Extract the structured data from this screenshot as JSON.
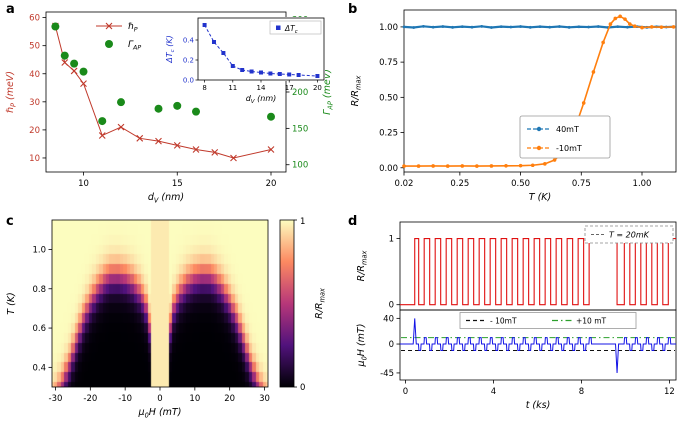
{
  "figure": {
    "background": "#ffffff"
  },
  "panels": {
    "a": {
      "label": "a"
    },
    "b": {
      "label": "b"
    },
    "c": {
      "label": "c"
    },
    "d": {
      "label": "d"
    }
  },
  "chart_data": [
    {
      "panel": "a",
      "type": "line+scatter",
      "xlabel": "d_{V} (nm)",
      "xlim": [
        8,
        20.8
      ],
      "xticks": [
        10,
        15,
        20
      ],
      "left": {
        "label": "ℏ_{P} (meV)",
        "color": "#c0392b",
        "lim": [
          5,
          62
        ],
        "ticks": [
          10,
          20,
          30,
          40,
          50,
          60
        ]
      },
      "right": {
        "label": "Γ_{AP} (meV)",
        "color": "#1a8a1a",
        "lim": [
          90,
          310
        ],
        "ticks": [
          100,
          150,
          200,
          250,
          300
        ]
      },
      "series": [
        {
          "name": "ℏ_{P}",
          "axis": "left",
          "color": "#c0392b",
          "marker": "x",
          "line": true,
          "points": [
            [
              8.5,
              57
            ],
            [
              9,
              44
            ],
            [
              9.5,
              41
            ],
            [
              10,
              36.5
            ],
            [
              11,
              18
            ],
            [
              12,
              21
            ],
            [
              13,
              17
            ],
            [
              14,
              16
            ],
            [
              15,
              14.5
            ],
            [
              16,
              13
            ],
            [
              17,
              12
            ],
            [
              18,
              10
            ],
            [
              20,
              13
            ]
          ]
        },
        {
          "name": "Γ_{AP}",
          "axis": "right",
          "color": "#1a8a1a",
          "marker": "circle",
          "line": false,
          "points": [
            [
              8.5,
              290
            ],
            [
              9,
              250
            ],
            [
              9.5,
              239
            ],
            [
              10,
              228
            ],
            [
              11,
              160
            ],
            [
              12,
              186
            ],
            [
              14,
              177
            ],
            [
              15,
              181
            ],
            [
              16,
              173
            ],
            [
              20,
              166
            ]
          ]
        }
      ],
      "inset": {
        "xlabel": "d_{V} (nm)",
        "ylabel": "ΔT_{c} (K)",
        "xlim": [
          7.3,
          20.7
        ],
        "ylim": [
          0,
          0.62
        ],
        "xticks": [
          8,
          11,
          14,
          17,
          20
        ],
        "yticks": [
          "0.0",
          "0.2",
          "0.4"
        ],
        "color": "#2233cc",
        "legend": "ΔT_{c}",
        "points": [
          [
            8,
            0.55
          ],
          [
            9,
            0.38
          ],
          [
            10,
            0.27
          ],
          [
            11,
            0.14
          ],
          [
            12,
            0.1
          ],
          [
            13,
            0.085
          ],
          [
            14,
            0.075
          ],
          [
            15,
            0.065
          ],
          [
            16,
            0.06
          ],
          [
            17,
            0.055
          ],
          [
            18,
            0.05
          ],
          [
            20,
            0.04
          ]
        ]
      }
    },
    {
      "panel": "b",
      "type": "line",
      "xlabel": "T (K)",
      "ylabel": "R/R_{max}",
      "xlim": [
        0.02,
        1.14
      ],
      "ylim": [
        -0.03,
        1.12
      ],
      "xticks": [
        "0.02",
        "0.25",
        "0.50",
        "0.75",
        "1.00"
      ],
      "yticks": [
        "0.00",
        "0.25",
        "0.50",
        "0.75",
        "1.00"
      ],
      "legend_position": "center-right",
      "series": [
        {
          "name": "40mT",
          "color": "#1f77b4",
          "points": [
            [
              0.02,
              1.0
            ],
            [
              0.06,
              0.996
            ],
            [
              0.1,
              1.004
            ],
            [
              0.14,
              0.998
            ],
            [
              0.18,
              1.003
            ],
            [
              0.22,
              0.997
            ],
            [
              0.26,
              1.002
            ],
            [
              0.3,
              0.998
            ],
            [
              0.34,
              1.004
            ],
            [
              0.38,
              0.996
            ],
            [
              0.42,
              1.002
            ],
            [
              0.46,
              0.999
            ],
            [
              0.5,
              1.003
            ],
            [
              0.54,
              0.997
            ],
            [
              0.58,
              1.002
            ],
            [
              0.62,
              0.998
            ],
            [
              0.66,
              1.003
            ],
            [
              0.7,
              0.997
            ],
            [
              0.74,
              1.001
            ],
            [
              0.78,
              0.999
            ],
            [
              0.82,
              1.003
            ],
            [
              0.86,
              0.996
            ],
            [
              0.9,
              1.002
            ],
            [
              0.94,
              0.998
            ],
            [
              0.98,
              1.002
            ],
            [
              1.02,
              0.997
            ],
            [
              1.06,
              1.001
            ],
            [
              1.1,
              0.999
            ],
            [
              1.13,
              1.001
            ]
          ]
        },
        {
          "name": "-10mT",
          "color": "#ff7f0e",
          "points": [
            [
              0.02,
              0.012
            ],
            [
              0.08,
              0.012
            ],
            [
              0.14,
              0.013
            ],
            [
              0.2,
              0.012
            ],
            [
              0.26,
              0.013
            ],
            [
              0.32,
              0.012
            ],
            [
              0.38,
              0.013
            ],
            [
              0.44,
              0.014
            ],
            [
              0.5,
              0.015
            ],
            [
              0.55,
              0.018
            ],
            [
              0.6,
              0.028
            ],
            [
              0.64,
              0.055
            ],
            [
              0.68,
              0.12
            ],
            [
              0.72,
              0.26
            ],
            [
              0.76,
              0.46
            ],
            [
              0.8,
              0.68
            ],
            [
              0.84,
              0.89
            ],
            [
              0.87,
              1.02
            ],
            [
              0.89,
              1.06
            ],
            [
              0.91,
              1.075
            ],
            [
              0.93,
              1.055
            ],
            [
              0.95,
              1.02
            ],
            [
              0.97,
              1.005
            ],
            [
              1.0,
              0.995
            ],
            [
              1.04,
              1.0
            ],
            [
              1.08,
              0.998
            ],
            [
              1.13,
              1.0
            ]
          ]
        }
      ]
    },
    {
      "panel": "c",
      "type": "heatmap",
      "xlabel": "μ_{0}H (mT)",
      "ylabel": "T (K)",
      "colorbar_label": "R/R_{max}",
      "xlim": [
        -31,
        31
      ],
      "ylim": [
        0.3,
        1.15
      ],
      "xticks": [
        -30,
        -20,
        -10,
        0,
        10,
        20,
        30
      ],
      "yticks": [
        "0.4",
        "0.6",
        "0.8",
        "1.0"
      ],
      "colorbar_ticks": [
        "0",
        "1"
      ],
      "colormap": [
        [
          0,
          "#000004"
        ],
        [
          0.25,
          "#51127c"
        ],
        [
          0.5,
          "#b73779"
        ],
        [
          0.75,
          "#fc8961"
        ],
        [
          1,
          "#fcfdbf"
        ]
      ],
      "zero_field_stripe_mT": 2.2,
      "stripe_R": 0.96,
      "transition_width_K": 0.045,
      "t_step_K": 0.05,
      "h_step_mT": 1,
      "tc_vs_H": [
        [
          2.2,
          0.34
        ],
        [
          3,
          0.6
        ],
        [
          4,
          0.7
        ],
        [
          5,
          0.745
        ],
        [
          6,
          0.78
        ],
        [
          8,
          0.825
        ],
        [
          10,
          0.85
        ],
        [
          12,
          0.862
        ],
        [
          14,
          0.86
        ],
        [
          16,
          0.835
        ],
        [
          18,
          0.79
        ],
        [
          20,
          0.725
        ],
        [
          22,
          0.64
        ],
        [
          24,
          0.53
        ],
        [
          26,
          0.41
        ],
        [
          28,
          0.31
        ],
        [
          30,
          0.23
        ],
        [
          32,
          0.18
        ]
      ]
    },
    {
      "panel": "d",
      "type": "time-series",
      "xlabel": "t (ks)",
      "xlim": [
        -0.25,
        12.3
      ],
      "xticks": [
        0,
        4,
        8,
        12
      ],
      "r_initial": 0,
      "top": {
        "ylabel": "R/R_{max}",
        "ylim": [
          -0.08,
          1.25
        ],
        "yticks": [
          0,
          1
        ],
        "color": "#e01010",
        "annotation": "T = 20mK"
      },
      "bottom": {
        "ylabel": "μ_{0}H (mT)",
        "ylim": [
          -56,
          53
        ],
        "yticks": [
          40,
          0,
          -45
        ],
        "color": "#1414e6",
        "ref_lines": [
          {
            "label": "- 10mT",
            "y": -10,
            "color": "#111111",
            "style": "dashed"
          },
          {
            "label": "+10 mT",
            "y": 10,
            "color": "#2ca02c",
            "style": "dashdot"
          }
        ],
        "init_spike": {
          "t": 0.42,
          "value": 40
        },
        "reset_spike": {
          "t": 9.62,
          "value": -45
        },
        "pulse_amplitude_mT": 10,
        "pulse_width_ks": 0.09,
        "pulse_trains": [
          {
            "start": 0.6,
            "period": 0.25,
            "count": 32,
            "first_sign": -1
          },
          {
            "start": 9.95,
            "period": 0.25,
            "count": 9,
            "first_sign": 1
          }
        ]
      }
    }
  ]
}
